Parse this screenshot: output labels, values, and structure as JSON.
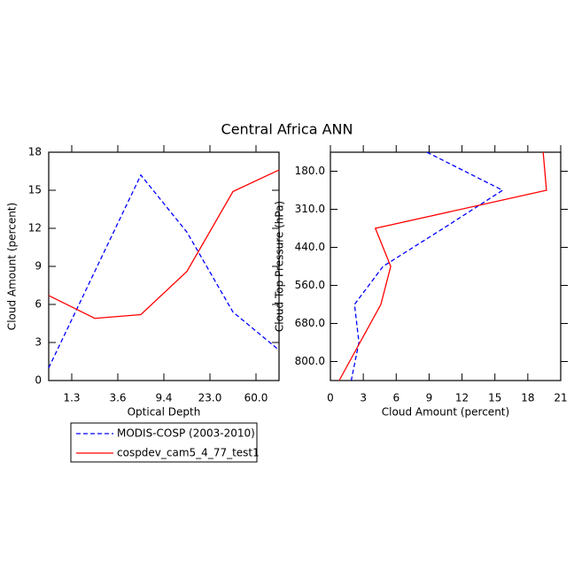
{
  "title": "Central Africa ANN",
  "chart_data": [
    {
      "type": "line",
      "xlabel": "Optical Depth",
      "ylabel": "Cloud Amount (percent)",
      "categories": [
        null,
        null,
        null,
        null,
        null,
        null
      ],
      "xtick_labels": [
        "1.3",
        "3.6",
        "9.4",
        "23.0",
        "60.0"
      ],
      "ylim": [
        0,
        18
      ],
      "yticks": [
        0,
        3,
        6,
        9,
        12,
        15,
        18
      ],
      "series": [
        {
          "name": "MODIS-COSP (2003-2010)",
          "color": "#0000ff",
          "dash": true,
          "values": [
            1.0,
            8.6,
            16.2,
            11.7,
            5.4,
            2.4
          ]
        },
        {
          "name": "cospdev_cam5_4_77_test1",
          "color": "#ff0000",
          "dash": false,
          "values": [
            6.7,
            4.9,
            5.2,
            8.6,
            14.9,
            16.6
          ]
        }
      ]
    },
    {
      "type": "hline",
      "xlabel": "Cloud Amount (percent)",
      "ylabel": "Cloud Top Pressure (hPa)",
      "categories": [
        null,
        null,
        null,
        null,
        null,
        null,
        null
      ],
      "ytick_labels": [
        "180.0",
        "310.0",
        "440.0",
        "560.0",
        "680.0",
        "800.0"
      ],
      "xlim": [
        0,
        21
      ],
      "xticks": [
        0,
        3,
        6,
        9,
        12,
        15,
        18,
        21
      ],
      "series": [
        {
          "name": "MODIS-COSP (2003-2010)",
          "color": "#0000ff",
          "dash": true,
          "values": [
            8.8,
            15.7,
            10.3,
            4.8,
            2.2,
            2.6,
            1.9
          ]
        },
        {
          "name": "cospdev_cam5_4_77_test1",
          "color": "#ff0000",
          "dash": false,
          "values": [
            19.4,
            19.7,
            4.1,
            5.5,
            4.6,
            2.7,
            0.8
          ]
        }
      ]
    }
  ]
}
